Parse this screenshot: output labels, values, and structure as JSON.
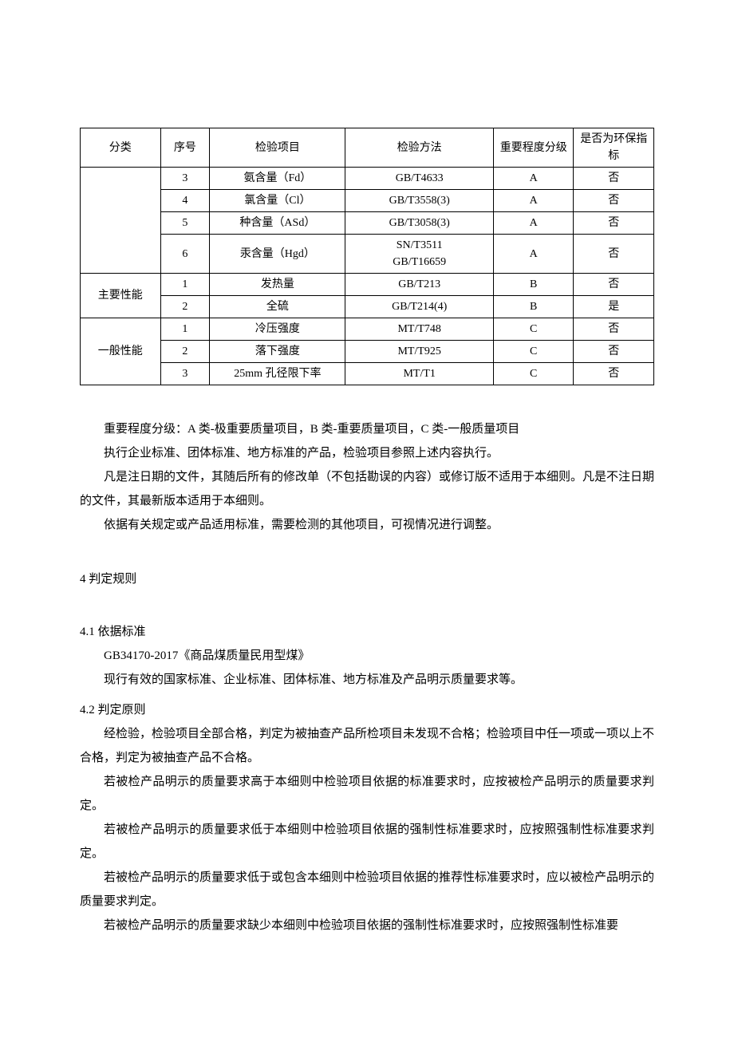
{
  "table": {
    "headers": {
      "category": "分类",
      "seq": "序号",
      "item": "检验项目",
      "method": "检验方法",
      "importance": "重要程度分级",
      "env": "是否为环保指标"
    },
    "categories": {
      "blank": "",
      "main": "主要性能",
      "general": "一般性能"
    },
    "rows": [
      {
        "seq": "3",
        "item": "氨含量（Fd）",
        "method": "GB/T4633",
        "importance": "A",
        "env": "否"
      },
      {
        "seq": "4",
        "item": "氯含量（Cl）",
        "method": "GB/T3558(3)",
        "importance": "A",
        "env": "否"
      },
      {
        "seq": "5",
        "item": "种含量（ASd）",
        "method": "GB/T3058(3)",
        "importance": "A",
        "env": "否"
      },
      {
        "seq": "6",
        "item": "汞含量（Hgd）",
        "method_line1": "SN/T3511",
        "method_line2": "GB/T16659",
        "importance": "A",
        "env": "否"
      },
      {
        "seq": "1",
        "item": "发热量",
        "method": "GB/T213",
        "importance": "B",
        "env": "否"
      },
      {
        "seq": "2",
        "item": "全硫",
        "method": "GB/T214(4)",
        "importance": "B",
        "env": "是"
      },
      {
        "seq": "1",
        "item": "冷压强度",
        "method": "MT/T748",
        "importance": "C",
        "env": "否"
      },
      {
        "seq": "2",
        "item": "落下强度",
        "method": "MT/T925",
        "importance": "C",
        "env": "否"
      },
      {
        "seq": "3",
        "item": "25mm 孔径限下率",
        "method": "MT/T1",
        "importance": "C",
        "env": "否"
      }
    ]
  },
  "paragraphs": {
    "p1": "重要程度分级：A 类-极重要质量项目，B 类-重要质量项目，C 类-一般质量项目",
    "p2": "执行企业标准、团体标准、地方标准的产品，检验项目参照上述内容执行。",
    "p3": "凡是注日期的文件，其随后所有的修改单（不包括勘误的内容）或修订版不适用于本细则。凡是不注日期的文件，其最新版本适用于本细则。",
    "p4": "依据有关规定或产品适用标准，需要检测的其他项目，可视情况进行调整。"
  },
  "section4": {
    "title": "4 判定规则",
    "sub1_title": "4.1  依据标准",
    "sub1_p1": "GB34170-2017《商品煤质量民用型煤》",
    "sub1_p2": "现行有效的国家标准、企业标准、团体标准、地方标准及产品明示质量要求等。",
    "sub2_title": "4.2  判定原则",
    "sub2_p1": "经检验，检验项目全部合格，判定为被抽查产品所检项目未发现不合格；检验项目中任一项或一项以上不合格，判定为被抽查产品不合格。",
    "sub2_p2": "若被检产品明示的质量要求高于本细则中检验项目依据的标准要求时，应按被检产品明示的质量要求判定。",
    "sub2_p3": "若被检产品明示的质量要求低于本细则中检验项目依据的强制性标准要求时，应按照强制性标准要求判定。",
    "sub2_p4": "若被检产品明示的质量要求低于或包含本细则中检验项目依据的推荐性标准要求时，应以被检产品明示的质量要求判定。",
    "sub2_p5": "若被检产品明示的质量要求缺少本细则中检验项目依据的强制性标准要求时，应按照强制性标准要"
  }
}
